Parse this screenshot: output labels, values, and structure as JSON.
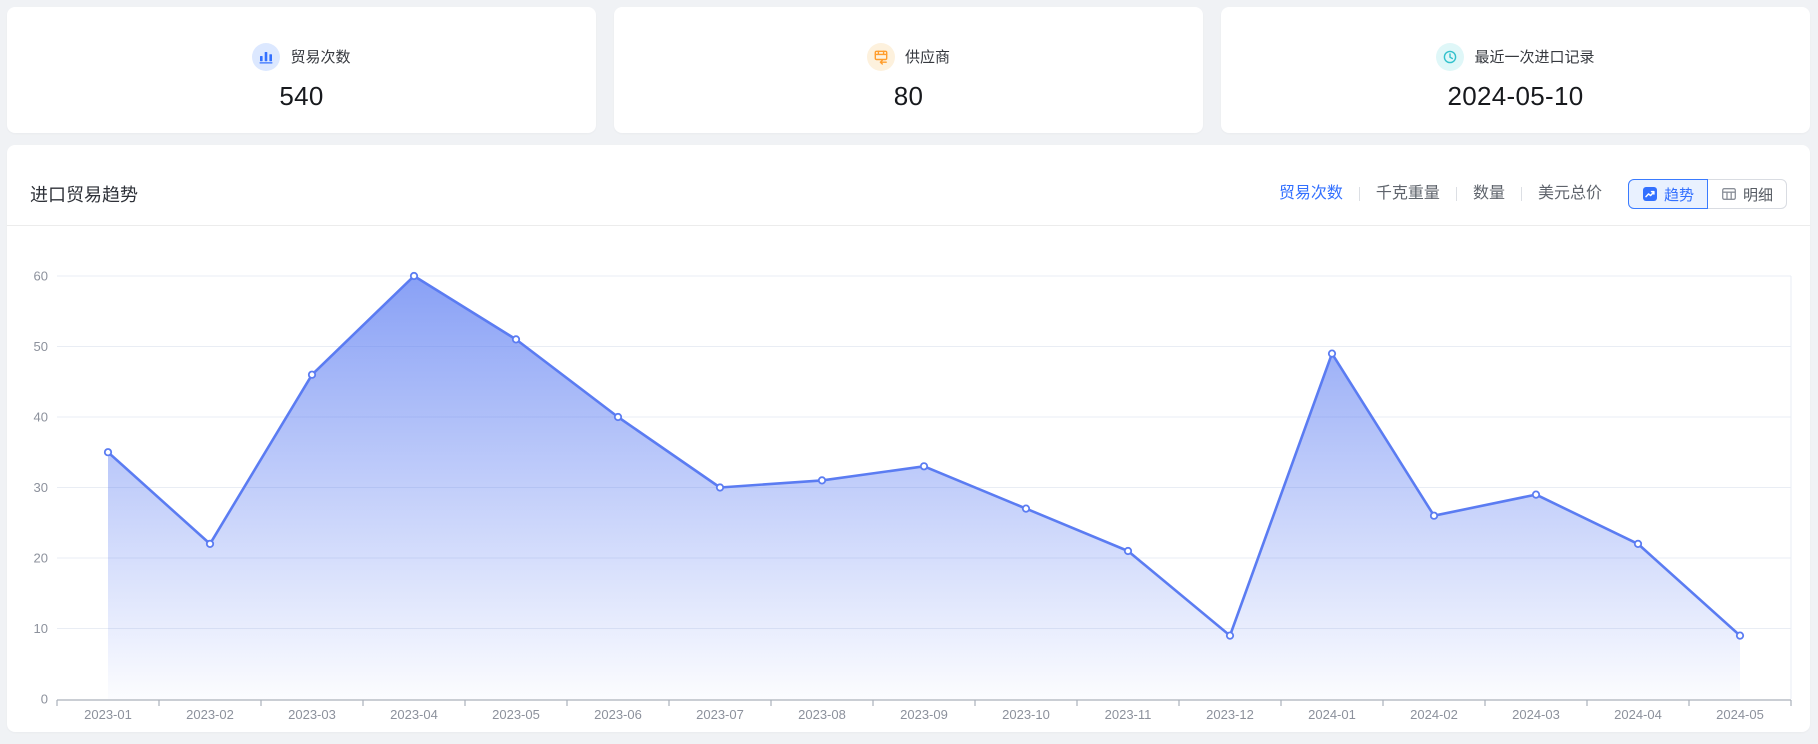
{
  "stat_cards": [
    {
      "icon": "bar-chart-icon",
      "label": "贸易次数",
      "value": "540"
    },
    {
      "icon": "supplier-icon",
      "label": "供应商",
      "value": "80"
    },
    {
      "icon": "clock-icon",
      "label": "最近一次进口记录",
      "value": "2024-05-10"
    }
  ],
  "trend_panel": {
    "title": "进口贸易趋势",
    "metric_tabs": [
      {
        "label": "贸易次数",
        "active": true
      },
      {
        "label": "千克重量",
        "active": false
      },
      {
        "label": "数量",
        "active": false
      },
      {
        "label": "美元总价",
        "active": false
      }
    ],
    "view_toggle": {
      "trend_label": "趋势",
      "detail_label": "明细"
    }
  },
  "chart_data": {
    "type": "area",
    "title": "进口贸易趋势",
    "x": [
      "2023-01",
      "2023-02",
      "2023-03",
      "2023-04",
      "2023-05",
      "2023-06",
      "2023-07",
      "2023-08",
      "2023-09",
      "2023-10",
      "2023-11",
      "2023-12",
      "2024-01",
      "2024-02",
      "2024-03",
      "2024-04",
      "2024-05"
    ],
    "series": [
      {
        "name": "贸易次数",
        "values": [
          35,
          22,
          46,
          60,
          51,
          40,
          30,
          31,
          33,
          27,
          21,
          9,
          49,
          26,
          29,
          22,
          9
        ]
      }
    ],
    "ylim": [
      0,
      60
    ],
    "yticks": [
      0,
      10,
      20,
      30,
      40,
      50,
      60
    ],
    "grid": true,
    "legend_position": "none",
    "colors": {
      "line": "#5b7cf2",
      "marker_fill": "#ffffff",
      "area_top": "rgba(91,124,242,0.72)",
      "area_bottom": "rgba(91,124,242,0.02)",
      "gridline": "#e9edf4",
      "axis_line": "#aab0ba",
      "tick_label": "#8c919c"
    }
  }
}
